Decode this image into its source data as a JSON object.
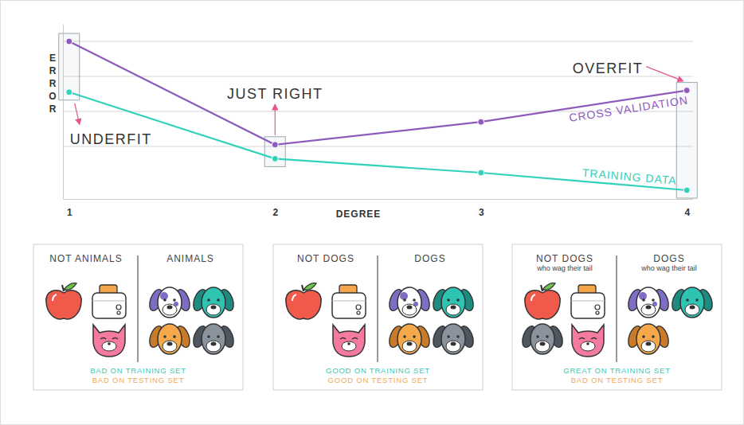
{
  "chart_data": {
    "type": "line",
    "x": [
      1,
      2,
      3,
      4
    ],
    "xlim": [
      0.97,
      4.03
    ],
    "xticks": [
      1,
      2,
      3,
      4
    ],
    "x_label": "DEGREE",
    "y_label": "ERROR",
    "ylim": [
      0,
      10
    ],
    "yticks": [
      3,
      5,
      7,
      9
    ],
    "grid": true,
    "tick_labels": "x",
    "series": [
      {
        "name": "CROSS VALIDATION",
        "color": "#8e5bbd",
        "marker": "circle",
        "values": [
          9.0,
          3.1,
          4.4,
          6.2
        ]
      },
      {
        "name": "TRAINING DATA",
        "color": "#30d2bb",
        "marker": "circle",
        "values": [
          6.1,
          2.3,
          1.5,
          0.5
        ]
      }
    ],
    "annotations": [
      "UNDERFIT",
      "JUST RIGHT",
      "OVERFIT"
    ]
  },
  "panels": [
    {
      "left_title": "NOT ANIMALS",
      "right_title": "ANIMALS",
      "training": "BAD ON TRAINING SET",
      "testing": "BAD ON TESTING SET"
    },
    {
      "left_title": "NOT DOGS",
      "right_title": "DOGS",
      "training": "GOOD ON TRAINING SET",
      "testing": "GOOD ON TESTING SET"
    },
    {
      "left_title": "NOT DOGS",
      "left_subtitle": "who wag their tail",
      "right_title": "DOGS",
      "right_subtitle": "who wag their tail",
      "training": "GREAT ON TRAINING SET",
      "testing": "BAD ON TESTING SET"
    }
  ]
}
